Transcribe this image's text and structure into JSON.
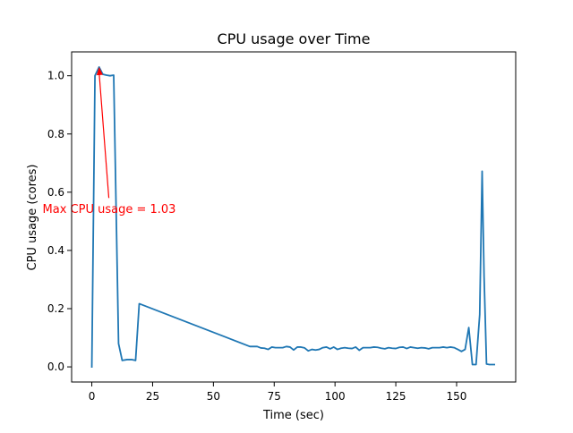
{
  "chart_data": {
    "type": "line",
    "title": "CPU usage over Time",
    "xlabel": "Time (sec)",
    "ylabel": "CPU usage (cores)",
    "xlim": [
      -8.3,
      174.3
    ],
    "ylim": [
      -0.052,
      1.082
    ],
    "xticks": [
      0,
      25,
      50,
      75,
      100,
      125,
      150
    ],
    "yticks": [
      0.0,
      0.2,
      0.4,
      0.6,
      0.8,
      1.0
    ],
    "xtick_labels": [
      "0",
      "25",
      "50",
      "75",
      "100",
      "125",
      "150"
    ],
    "ytick_labels": [
      "0.0",
      "0.2",
      "0.4",
      "0.6",
      "0.8",
      "1.0"
    ],
    "grid": false,
    "series": [
      {
        "color": "#1f77b4",
        "x": [
          0,
          1.3,
          3,
          4.5,
          6,
          7.5,
          9,
          11,
          12.5,
          14.5,
          16.5,
          18,
          19.5,
          65,
          66.5,
          68,
          69.5,
          71,
          72.5,
          74,
          75.5,
          77,
          78.5,
          80,
          81.5,
          83,
          84.5,
          86,
          87.5,
          89,
          90.5,
          92,
          93.5,
          95,
          96.5,
          98,
          99.5,
          101,
          102.5,
          104,
          105.5,
          107,
          108.5,
          110,
          111.5,
          113,
          114.5,
          116,
          117.5,
          119,
          120.5,
          122,
          123.5,
          125,
          126.5,
          128,
          129.5,
          131,
          132.5,
          134,
          135.5,
          137,
          138.5,
          140,
          141.5,
          143,
          144.5,
          146,
          147.5,
          149,
          150.5,
          152,
          153.5,
          155,
          156.5,
          158,
          159.5,
          160.5,
          161.3,
          162.3,
          163.5,
          164.5,
          165.5
        ],
        "y": [
          0.0,
          1.0,
          1.03,
          1.005,
          1.002,
          1.0,
          1.002,
          0.08,
          0.022,
          0.025,
          0.025,
          0.022,
          0.217,
          0.07,
          0.07,
          0.07,
          0.065,
          0.064,
          0.06,
          0.068,
          0.066,
          0.066,
          0.066,
          0.07,
          0.068,
          0.058,
          0.068,
          0.068,
          0.065,
          0.055,
          0.06,
          0.058,
          0.06,
          0.066,
          0.068,
          0.062,
          0.068,
          0.06,
          0.064,
          0.066,
          0.064,
          0.063,
          0.068,
          0.057,
          0.066,
          0.066,
          0.066,
          0.068,
          0.067,
          0.064,
          0.062,
          0.066,
          0.064,
          0.063,
          0.067,
          0.068,
          0.063,
          0.068,
          0.066,
          0.064,
          0.066,
          0.065,
          0.062,
          0.066,
          0.066,
          0.066,
          0.068,
          0.066,
          0.068,
          0.066,
          0.06,
          0.053,
          0.06,
          0.135,
          0.008,
          0.008,
          0.18,
          0.672,
          0.31,
          0.01,
          0.008,
          0.008,
          0.008
        ]
      }
    ],
    "annotation": {
      "text": "Max CPU usage = 1.03",
      "color": "#ff0000",
      "point": [
        3,
        1.03
      ],
      "text_anchor_point": [
        7,
        0.58
      ]
    }
  }
}
